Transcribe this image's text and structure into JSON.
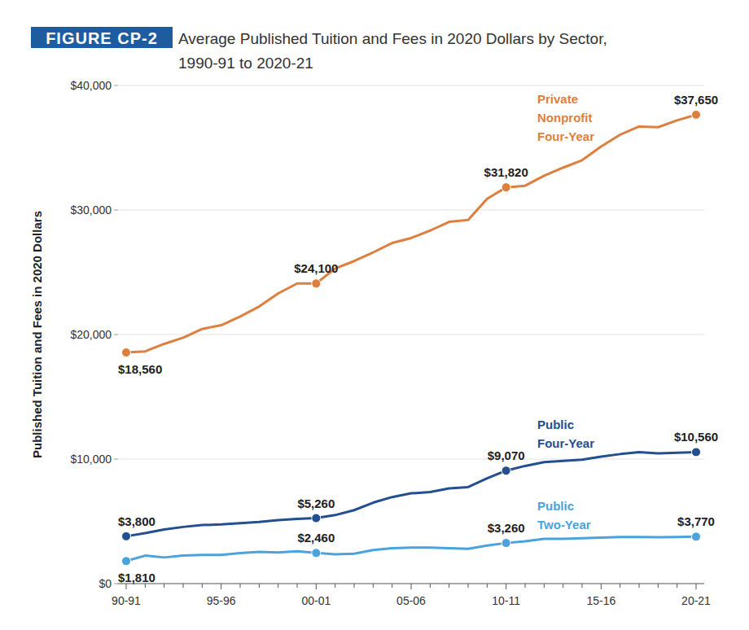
{
  "chart_data": {
    "type": "line",
    "figure_label": "FIGURE CP-2",
    "title": "Average Published Tuition and Fees in 2020 Dollars by Sector, 1990-91 to 2020-21",
    "y_label": "Published Tuition and Fees in 2020 Dollars",
    "categories": [
      "90-91",
      null,
      null,
      null,
      null,
      "95-96",
      null,
      null,
      null,
      null,
      "00-01",
      null,
      null,
      null,
      null,
      "05-06",
      null,
      null,
      null,
      null,
      "10-11",
      null,
      null,
      null,
      null,
      "15-16",
      null,
      null,
      null,
      null,
      "20-21"
    ],
    "ylim": [
      0,
      40000
    ],
    "yticks": [
      {
        "value": 0,
        "label": "$0"
      },
      {
        "value": 10000,
        "label": "$10,000"
      },
      {
        "value": 20000,
        "label": "$20,000"
      },
      {
        "value": 30000,
        "label": "$30,000"
      },
      {
        "value": 40000,
        "label": "$40,000"
      }
    ],
    "grid": true,
    "data_labels": true,
    "series": [
      {
        "name": "Private Nonprofit Four-Year",
        "color": "#dd7f3e",
        "values": [
          18560,
          18650,
          19250,
          19750,
          20450,
          20750,
          21450,
          22250,
          23300,
          24100,
          24100,
          25300,
          25900,
          26600,
          27350,
          27750,
          28350,
          29050,
          29200,
          30900,
          31820,
          31950,
          32750,
          33400,
          34000,
          35100,
          36050,
          36700,
          36650,
          37200,
          37650
        ],
        "value_labels": [
          "$18,560",
          null,
          null,
          null,
          null,
          null,
          null,
          null,
          null,
          null,
          "$24,100",
          null,
          null,
          null,
          null,
          null,
          null,
          null,
          null,
          null,
          "$31,820",
          null,
          null,
          null,
          null,
          null,
          null,
          null,
          null,
          null,
          "$37,650"
        ]
      },
      {
        "name": "Public Four-Year",
        "color": "#234f8e",
        "values": [
          3800,
          4050,
          4350,
          4550,
          4700,
          4750,
          4850,
          4950,
          5100,
          5200,
          5260,
          5500,
          5900,
          6500,
          6950,
          7250,
          7350,
          7650,
          7750,
          8450,
          9070,
          9450,
          9750,
          9850,
          9950,
          10200,
          10400,
          10550,
          10450,
          10500,
          10560
        ],
        "value_labels": [
          "$3,800",
          null,
          null,
          null,
          null,
          null,
          null,
          null,
          null,
          null,
          "$5,260",
          null,
          null,
          null,
          null,
          null,
          null,
          null,
          null,
          null,
          "$9,070",
          null,
          null,
          null,
          null,
          null,
          null,
          null,
          null,
          null,
          "$10,560"
        ]
      },
      {
        "name": "Public Two-Year",
        "color": "#4ba3dd",
        "values": [
          1810,
          2250,
          2100,
          2250,
          2300,
          2300,
          2450,
          2550,
          2500,
          2600,
          2460,
          2350,
          2400,
          2700,
          2850,
          2900,
          2900,
          2850,
          2800,
          3050,
          3260,
          3400,
          3600,
          3600,
          3650,
          3700,
          3750,
          3750,
          3720,
          3750,
          3770
        ],
        "value_labels": [
          "$1,810",
          null,
          null,
          null,
          null,
          null,
          null,
          null,
          null,
          null,
          "$2,460",
          null,
          null,
          null,
          null,
          null,
          null,
          null,
          null,
          null,
          "$3,260",
          null,
          null,
          null,
          null,
          null,
          null,
          null,
          null,
          null,
          "$3,770"
        ]
      }
    ]
  }
}
